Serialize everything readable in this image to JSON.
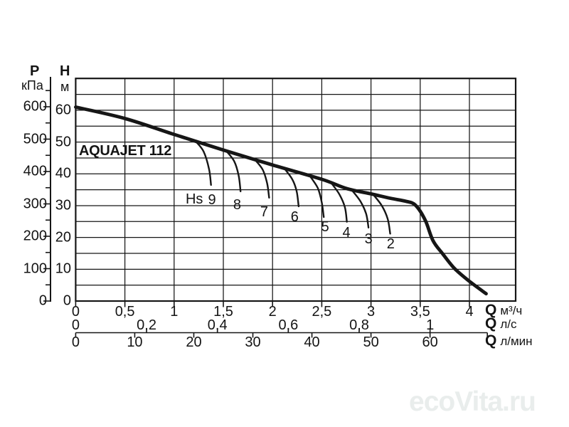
{
  "page": {
    "background": "#ffffff",
    "line_color": "#161616",
    "watermark": {
      "text": "ecoVita.ru",
      "color": "#e9edec"
    }
  },
  "title": "AQUAJET 112",
  "axis_headers": {
    "pressure_symbol": "P",
    "pressure_unit": "кПа",
    "head_symbol": "H",
    "head_unit": "м"
  },
  "flow_axis_rows": [
    {
      "symbol": "Q",
      "unit": "м³/ч"
    },
    {
      "symbol": "Q",
      "unit": "л/с"
    },
    {
      "symbol": "Q",
      "unit": "л/мин"
    }
  ],
  "chart_data": {
    "type": "line",
    "title": "AQUAJET 112",
    "grid": true,
    "y_axes": [
      {
        "name": "H",
        "unit": "м",
        "range": [
          0,
          70
        ],
        "grid_step": 5,
        "ticks": [
          0,
          10,
          20,
          30,
          40,
          50,
          60
        ],
        "tick_labels": [
          "0",
          "10",
          "20",
          "30",
          "40",
          "50",
          "60"
        ]
      },
      {
        "name": "P",
        "unit": "кПа",
        "range": [
          0,
          660
        ],
        "minor_step": 50,
        "ticks": [
          0,
          100,
          200,
          300,
          400,
          500,
          600
        ],
        "tick_labels": [
          "0",
          "100",
          "200",
          "300",
          "400",
          "500",
          "600"
        ]
      }
    ],
    "x_axes": [
      {
        "unit": "м³/ч",
        "range": [
          0,
          4.47
        ],
        "grid_step": 0.5,
        "ticks": [
          0,
          0.5,
          1,
          1.5,
          2,
          2.5,
          3,
          3.5,
          4
        ],
        "tick_labels": [
          "0",
          "0,5",
          "1",
          "1,5",
          "2",
          "2,5",
          "3",
          "3,5",
          "4"
        ]
      },
      {
        "unit": "л/с",
        "to_m3h": 3.6,
        "ticks": [
          0,
          0.2,
          0.4,
          0.6,
          0.8,
          1
        ],
        "tick_labels": [
          "0",
          "0,2",
          "0,4",
          "0,6",
          "0,8",
          "1"
        ]
      },
      {
        "unit": "л/мин",
        "to_m3h": 0.06,
        "axis_end_lmin": 69.7,
        "ticks": [
          0,
          10,
          20,
          30,
          40,
          50,
          60
        ],
        "tick_labels": [
          "0",
          "10",
          "20",
          "30",
          "40",
          "50",
          "60"
        ]
      }
    ],
    "main_curve": {
      "name": "H(Q) pump curve",
      "points_q_h": [
        [
          0,
          61
        ],
        [
          0.5,
          57.4
        ],
        [
          1.0,
          52.4
        ],
        [
          1.5,
          47.5
        ],
        [
          2.0,
          42.8
        ],
        [
          2.5,
          38.3
        ],
        [
          2.75,
          35.4
        ],
        [
          3.0,
          33.7
        ],
        [
          3.2,
          32.3
        ],
        [
          3.35,
          31.4
        ],
        [
          3.45,
          30.2
        ],
        [
          3.55,
          25.5
        ],
        [
          3.63,
          19.0
        ],
        [
          3.73,
          14.8
        ],
        [
          3.85,
          10.2
        ],
        [
          4.0,
          6.2
        ],
        [
          4.17,
          2.3
        ]
      ]
    },
    "hs_prefix_label": {
      "text": "Hs",
      "q": 1.205,
      "h": 32.0
    },
    "hs_curves": [
      {
        "label": "9",
        "label_q": 1.385,
        "label_h": 31.8,
        "points_q_h": [
          [
            1.22,
            50.2
          ],
          [
            1.3,
            47.0
          ],
          [
            1.355,
            41.5
          ],
          [
            1.375,
            36.5
          ]
        ]
      },
      {
        "label": "8",
        "label_q": 1.64,
        "label_h": 30.3,
        "points_q_h": [
          [
            1.53,
            47.2
          ],
          [
            1.61,
            44.0
          ],
          [
            1.655,
            39.5
          ],
          [
            1.675,
            34.5
          ]
        ]
      },
      {
        "label": "7",
        "label_q": 1.915,
        "label_h": 27.9,
        "points_q_h": [
          [
            1.82,
            44.5
          ],
          [
            1.9,
            41.3
          ],
          [
            1.945,
            37.0
          ],
          [
            1.965,
            32.5
          ]
        ]
      },
      {
        "label": "6",
        "label_q": 2.225,
        "label_h": 26.4,
        "points_q_h": [
          [
            2.12,
            41.7
          ],
          [
            2.2,
            38.3
          ],
          [
            2.245,
            34.5
          ],
          [
            2.265,
            29.8
          ]
        ]
      },
      {
        "label": "5",
        "label_q": 2.535,
        "label_h": 23.3,
        "points_q_h": [
          [
            2.38,
            39.3
          ],
          [
            2.46,
            35.5
          ],
          [
            2.5,
            31.0
          ],
          [
            2.52,
            26.4
          ]
        ]
      },
      {
        "label": "4",
        "label_q": 2.75,
        "label_h": 21.5,
        "points_q_h": [
          [
            2.6,
            37.0
          ],
          [
            2.68,
            33.5
          ],
          [
            2.735,
            29.5
          ],
          [
            2.755,
            24.9
          ]
        ]
      },
      {
        "label": "3",
        "label_q": 2.975,
        "label_h": 19.4,
        "points_q_h": [
          [
            2.8,
            35.1
          ],
          [
            2.89,
            31.5
          ],
          [
            2.95,
            27.5
          ],
          [
            2.975,
            23.1
          ]
        ]
      },
      {
        "label": "2",
        "label_q": 3.2,
        "label_h": 17.8,
        "points_q_h": [
          [
            3.02,
            33.6
          ],
          [
            3.11,
            30.0
          ],
          [
            3.17,
            25.8
          ],
          [
            3.195,
            21.2
          ]
        ]
      }
    ]
  }
}
